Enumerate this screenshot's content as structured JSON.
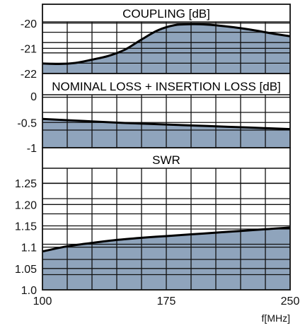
{
  "chart_data": [
    {
      "type": "area",
      "title": "COUPLING [dB]",
      "x": [
        100,
        110,
        120,
        130,
        140,
        150,
        160,
        170,
        180,
        190,
        200,
        210,
        220,
        230,
        240,
        250
      ],
      "series": [
        {
          "values": [
            -21.6,
            -21.62,
            -21.58,
            -21.45,
            -21.3,
            -21.05,
            -20.65,
            -20.28,
            -20.08,
            -20.04,
            -20.06,
            -20.12,
            -20.2,
            -20.3,
            -20.42,
            -20.52
          ]
        }
      ],
      "ylim": [
        -22,
        -19.95
      ],
      "yticks": [
        -20,
        -21,
        -22
      ],
      "grid": true,
      "fill_color": "#8fa4bc"
    },
    {
      "type": "area",
      "title": "NOMINAL LOSS + INSERTION LOSS [dB]",
      "x": [
        100,
        125,
        150,
        175,
        200,
        225,
        250
      ],
      "series": [
        {
          "values": [
            -0.43,
            -0.47,
            -0.51,
            -0.54,
            -0.57,
            -0.6,
            -0.63
          ]
        }
      ],
      "ylim": [
        -1,
        0.05
      ],
      "yticks": [
        0,
        -0.5,
        -1
      ],
      "grid": true,
      "fill_color": "#8fa4bc"
    },
    {
      "type": "area",
      "title": "SWR",
      "x": [
        100,
        115,
        130,
        145,
        160,
        175,
        190,
        205,
        220,
        235,
        250
      ],
      "series": [
        {
          "values": [
            1.09,
            1.102,
            1.11,
            1.117,
            1.122,
            1.126,
            1.13,
            1.134,
            1.138,
            1.142,
            1.146
          ]
        }
      ],
      "ylim": [
        1.0,
        1.285
      ],
      "yticks": [
        "1.25",
        "1.20",
        "1.15",
        "1.1",
        "1.05",
        "1.0"
      ],
      "ytick_values": [
        1.25,
        1.2,
        1.15,
        1.1,
        1.05,
        1.0
      ],
      "grid": true,
      "fill_color": "#8fa4bc"
    }
  ],
  "x_axis": {
    "min": 100,
    "max": 250,
    "tick_labels": [
      "100",
      "175",
      "250"
    ],
    "tick_values": [
      100,
      175,
      250
    ],
    "label": "f[MHz]"
  }
}
